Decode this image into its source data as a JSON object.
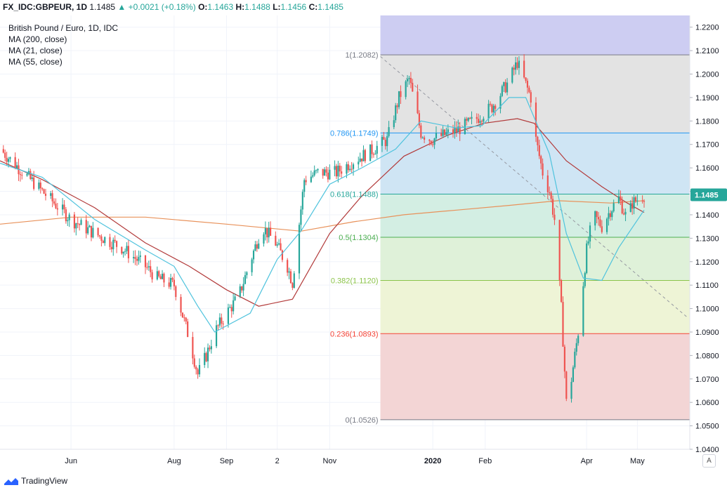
{
  "header": {
    "symbol": "FX_IDC:GBPEUR, 1D",
    "last": "1.1485",
    "change": "+0.0021 (+0.18%)",
    "o_label": "O:",
    "o": "1.1463",
    "h_label": "H:",
    "h": "1.1488",
    "l_label": "L:",
    "l": "1.1456",
    "c_label": "C:",
    "c": "1.1485"
  },
  "legend": {
    "title": "British Pound / Euro, 1D, IDC",
    "ma200": "MA (200, close)",
    "ma21": "MA (21, close)",
    "ma55": "MA (55, close)"
  },
  "footer": {
    "brand": "TradingView"
  },
  "auto_label": "A",
  "colors": {
    "up": "#26a69a",
    "down": "#ef5350",
    "ma200": "#e8915a",
    "ma21": "#4fc3dd",
    "ma55": "#b23a3a",
    "grid": "#f0f3fa",
    "axis_text": "#131722"
  },
  "chart_data": {
    "type": "candlestick",
    "instrument": "British Pound / Euro",
    "interval": "1D",
    "ylim": [
      1.04,
      1.225
    ],
    "y_ticks": [
      "1.2200",
      "1.2100",
      "1.2000",
      "1.1900",
      "1.1800",
      "1.1700",
      "1.1600",
      "1.1500",
      "1.1400",
      "1.1300",
      "1.1200",
      "1.1100",
      "1.1000",
      "1.0900",
      "1.0800",
      "1.0700",
      "1.0600",
      "1.0500",
      "1.0400"
    ],
    "x_ticks": [
      {
        "label": "Jun",
        "date": "2019-06-01"
      },
      {
        "label": "Aug",
        "date": "2019-08-01"
      },
      {
        "label": "Sep",
        "date": "2019-09-01"
      },
      {
        "label": "2",
        "date": "2019-10-01"
      },
      {
        "label": "Nov",
        "date": "2019-11-01"
      },
      {
        "label": "2020",
        "date": "2020-01-01"
      },
      {
        "label": "Feb",
        "date": "2020-02-01"
      },
      {
        "label": "Apr",
        "date": "2020-04-01"
      },
      {
        "label": "May",
        "date": "2020-05-01"
      }
    ],
    "x_range": [
      "2019-04-20",
      "2020-06-01"
    ],
    "last_price": "1.1485",
    "fibonacci": {
      "start_date": "2019-12-01",
      "end_date": "2020-06-01",
      "levels": [
        {
          "ratio": "1",
          "price": 1.2082,
          "label": "1(1.2082)",
          "line": "#787b86",
          "fill": "#e3e3e3"
        },
        {
          "ratio": "0.786",
          "price": 1.1749,
          "label": "0.786(1.1749)",
          "line": "#2196f3",
          "fill": "#cfe5f4"
        },
        {
          "ratio": "0.618",
          "price": 1.1488,
          "label": "0.618(1.1488)",
          "line": "#26a69a",
          "fill": "#d3eee3"
        },
        {
          "ratio": "0.5",
          "price": 1.1304,
          "label": "0.5(1.1304)",
          "line": "#4caf50",
          "fill": "#dff1d9"
        },
        {
          "ratio": "0.382",
          "price": 1.112,
          "label": "0.382(1.1120)",
          "line": "#8bc34a",
          "fill": "#eef4d6"
        },
        {
          "ratio": "0.236",
          "price": 1.0893,
          "label": "0.236(1.0893)",
          "line": "#f44336",
          "fill": "#f3d5d5"
        },
        {
          "ratio": "0",
          "price": 1.0526,
          "label": "0(1.0526)",
          "line": "#787b86",
          "fill": null
        }
      ],
      "top_fill": {
        "price": 1.225,
        "color": "#cdcdf2"
      }
    },
    "trendline": {
      "from": {
        "date": "2019-12-01",
        "price": 1.2075
      },
      "to": {
        "date": "2020-05-31",
        "price": 1.096
      }
    },
    "path": [
      [
        "2019-04-20",
        1.168
      ],
      [
        "2019-05-01",
        1.16
      ],
      [
        "2019-05-15",
        1.15
      ],
      [
        "2019-06-01",
        1.138
      ],
      [
        "2019-06-15",
        1.132
      ],
      [
        "2019-07-01",
        1.126
      ],
      [
        "2019-07-15",
        1.118
      ],
      [
        "2019-07-22",
        1.113
      ],
      [
        "2019-08-01",
        1.11
      ],
      [
        "2019-08-10",
        1.087
      ],
      [
        "2019-08-15",
        1.072
      ],
      [
        "2019-08-20",
        1.08
      ],
      [
        "2019-08-25",
        1.09
      ],
      [
        "2019-09-01",
        1.098
      ],
      [
        "2019-09-08",
        1.105
      ],
      [
        "2019-09-15",
        1.12
      ],
      [
        "2019-09-22",
        1.135
      ],
      [
        "2019-09-30",
        1.128
      ],
      [
        "2019-10-07",
        1.118
      ],
      [
        "2019-10-10",
        1.111
      ],
      [
        "2019-10-13",
        1.13
      ],
      [
        "2019-10-17",
        1.155
      ],
      [
        "2019-10-25",
        1.158
      ],
      [
        "2019-11-05",
        1.158
      ],
      [
        "2019-11-15",
        1.163
      ],
      [
        "2019-11-25",
        1.167
      ],
      [
        "2019-12-05",
        1.172
      ],
      [
        "2019-12-12",
        1.19
      ],
      [
        "2019-12-18",
        1.198
      ],
      [
        "2019-12-25",
        1.175
      ],
      [
        "2019-12-31",
        1.172
      ],
      [
        "2020-01-15",
        1.176
      ],
      [
        "2020-01-25",
        1.18
      ],
      [
        "2020-02-05",
        1.186
      ],
      [
        "2020-02-15",
        1.197
      ],
      [
        "2020-02-20",
        1.205
      ],
      [
        "2020-02-28",
        1.19
      ],
      [
        "2020-03-02",
        1.172
      ],
      [
        "2020-03-06",
        1.158
      ],
      [
        "2020-03-10",
        1.15
      ],
      [
        "2020-03-13",
        1.138
      ],
      [
        "2020-03-17",
        1.1
      ],
      [
        "2020-03-20",
        1.06
      ],
      [
        "2020-03-23",
        1.07
      ],
      [
        "2020-03-27",
        1.09
      ],
      [
        "2020-04-01",
        1.125
      ],
      [
        "2020-04-05",
        1.14
      ],
      [
        "2020-04-10",
        1.135
      ],
      [
        "2020-04-15",
        1.142
      ],
      [
        "2020-04-20",
        1.147
      ],
      [
        "2020-04-25",
        1.138
      ],
      [
        "2020-04-28",
        1.145
      ],
      [
        "2020-05-05",
        1.1485
      ]
    ],
    "ma_200": [
      [
        "2019-04-20",
        1.136
      ],
      [
        "2019-06-01",
        1.139
      ],
      [
        "2019-07-15",
        1.139
      ],
      [
        "2019-09-01",
        1.136
      ],
      [
        "2019-10-15",
        1.133
      ],
      [
        "2019-11-15",
        1.137
      ],
      [
        "2019-12-15",
        1.14
      ],
      [
        "2020-01-15",
        1.142
      ],
      [
        "2020-02-15",
        1.144
      ],
      [
        "2020-03-15",
        1.146
      ],
      [
        "2020-04-15",
        1.145
      ],
      [
        "2020-05-05",
        1.146
      ]
    ],
    "ma_21": [
      [
        "2019-04-20",
        1.162
      ],
      [
        "2019-05-15",
        1.156
      ],
      [
        "2019-06-15",
        1.138
      ],
      [
        "2019-07-15",
        1.125
      ],
      [
        "2019-08-01",
        1.118
      ],
      [
        "2019-08-15",
        1.101
      ],
      [
        "2019-08-25",
        1.09
      ],
      [
        "2019-09-15",
        1.098
      ],
      [
        "2019-10-01",
        1.121
      ],
      [
        "2019-10-15",
        1.133
      ],
      [
        "2019-11-01",
        1.153
      ],
      [
        "2019-11-20",
        1.16
      ],
      [
        "2019-12-10",
        1.168
      ],
      [
        "2019-12-25",
        1.18
      ],
      [
        "2020-01-15",
        1.177
      ],
      [
        "2020-01-30",
        1.178
      ],
      [
        "2020-02-15",
        1.19
      ],
      [
        "2020-02-25",
        1.19
      ],
      [
        "2020-03-10",
        1.166
      ],
      [
        "2020-03-20",
        1.132
      ],
      [
        "2020-03-30",
        1.113
      ],
      [
        "2020-04-10",
        1.112
      ],
      [
        "2020-04-20",
        1.126
      ],
      [
        "2020-05-05",
        1.142
      ]
    ],
    "ma_55": [
      [
        "2019-04-20",
        1.163
      ],
      [
        "2019-05-15",
        1.155
      ],
      [
        "2019-06-15",
        1.143
      ],
      [
        "2019-07-15",
        1.128
      ],
      [
        "2019-08-10",
        1.118
      ],
      [
        "2019-09-01",
        1.108
      ],
      [
        "2019-09-20",
        1.101
      ],
      [
        "2019-10-10",
        1.104
      ],
      [
        "2019-11-01",
        1.132
      ],
      [
        "2019-11-20",
        1.148
      ],
      [
        "2019-12-15",
        1.165
      ],
      [
        "2020-01-10",
        1.174
      ],
      [
        "2020-01-31",
        1.179
      ],
      [
        "2020-02-20",
        1.181
      ],
      [
        "2020-03-01",
        1.179
      ],
      [
        "2020-03-20",
        1.163
      ],
      [
        "2020-04-10",
        1.152
      ],
      [
        "2020-04-25",
        1.145
      ],
      [
        "2020-05-05",
        1.141
      ]
    ]
  }
}
